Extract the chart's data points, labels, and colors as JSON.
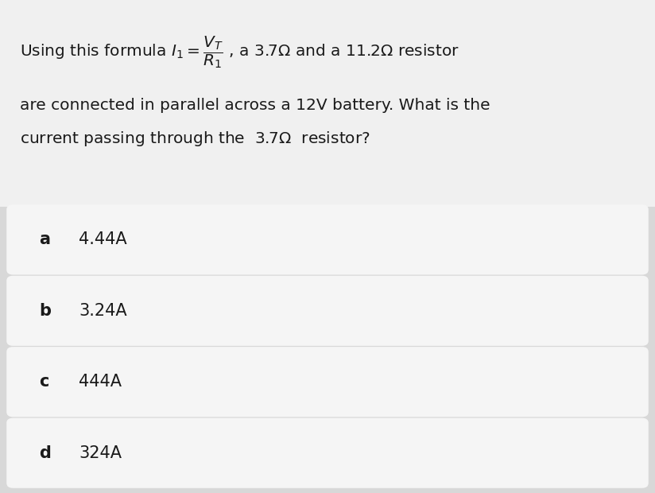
{
  "bg_color": "#d8d8d8",
  "question_bg": "#f0f0f0",
  "option_box_color": "#f5f5f5",
  "text_color": "#1a1a1a",
  "question_line2": "are connected in parallel across a 12V battery. What is the",
  "question_line3": "current passing through the  3.7Ω  resistor?",
  "options": [
    {
      "label": "a",
      "text": "4.44A"
    },
    {
      "label": "b",
      "text": "3.24A"
    },
    {
      "label": "c",
      "text": "444A"
    },
    {
      "label": "d",
      "text": "324A"
    }
  ],
  "font_size_question": 14.5,
  "font_size_options": 15,
  "fig_width": 8.24,
  "fig_height": 6.2
}
